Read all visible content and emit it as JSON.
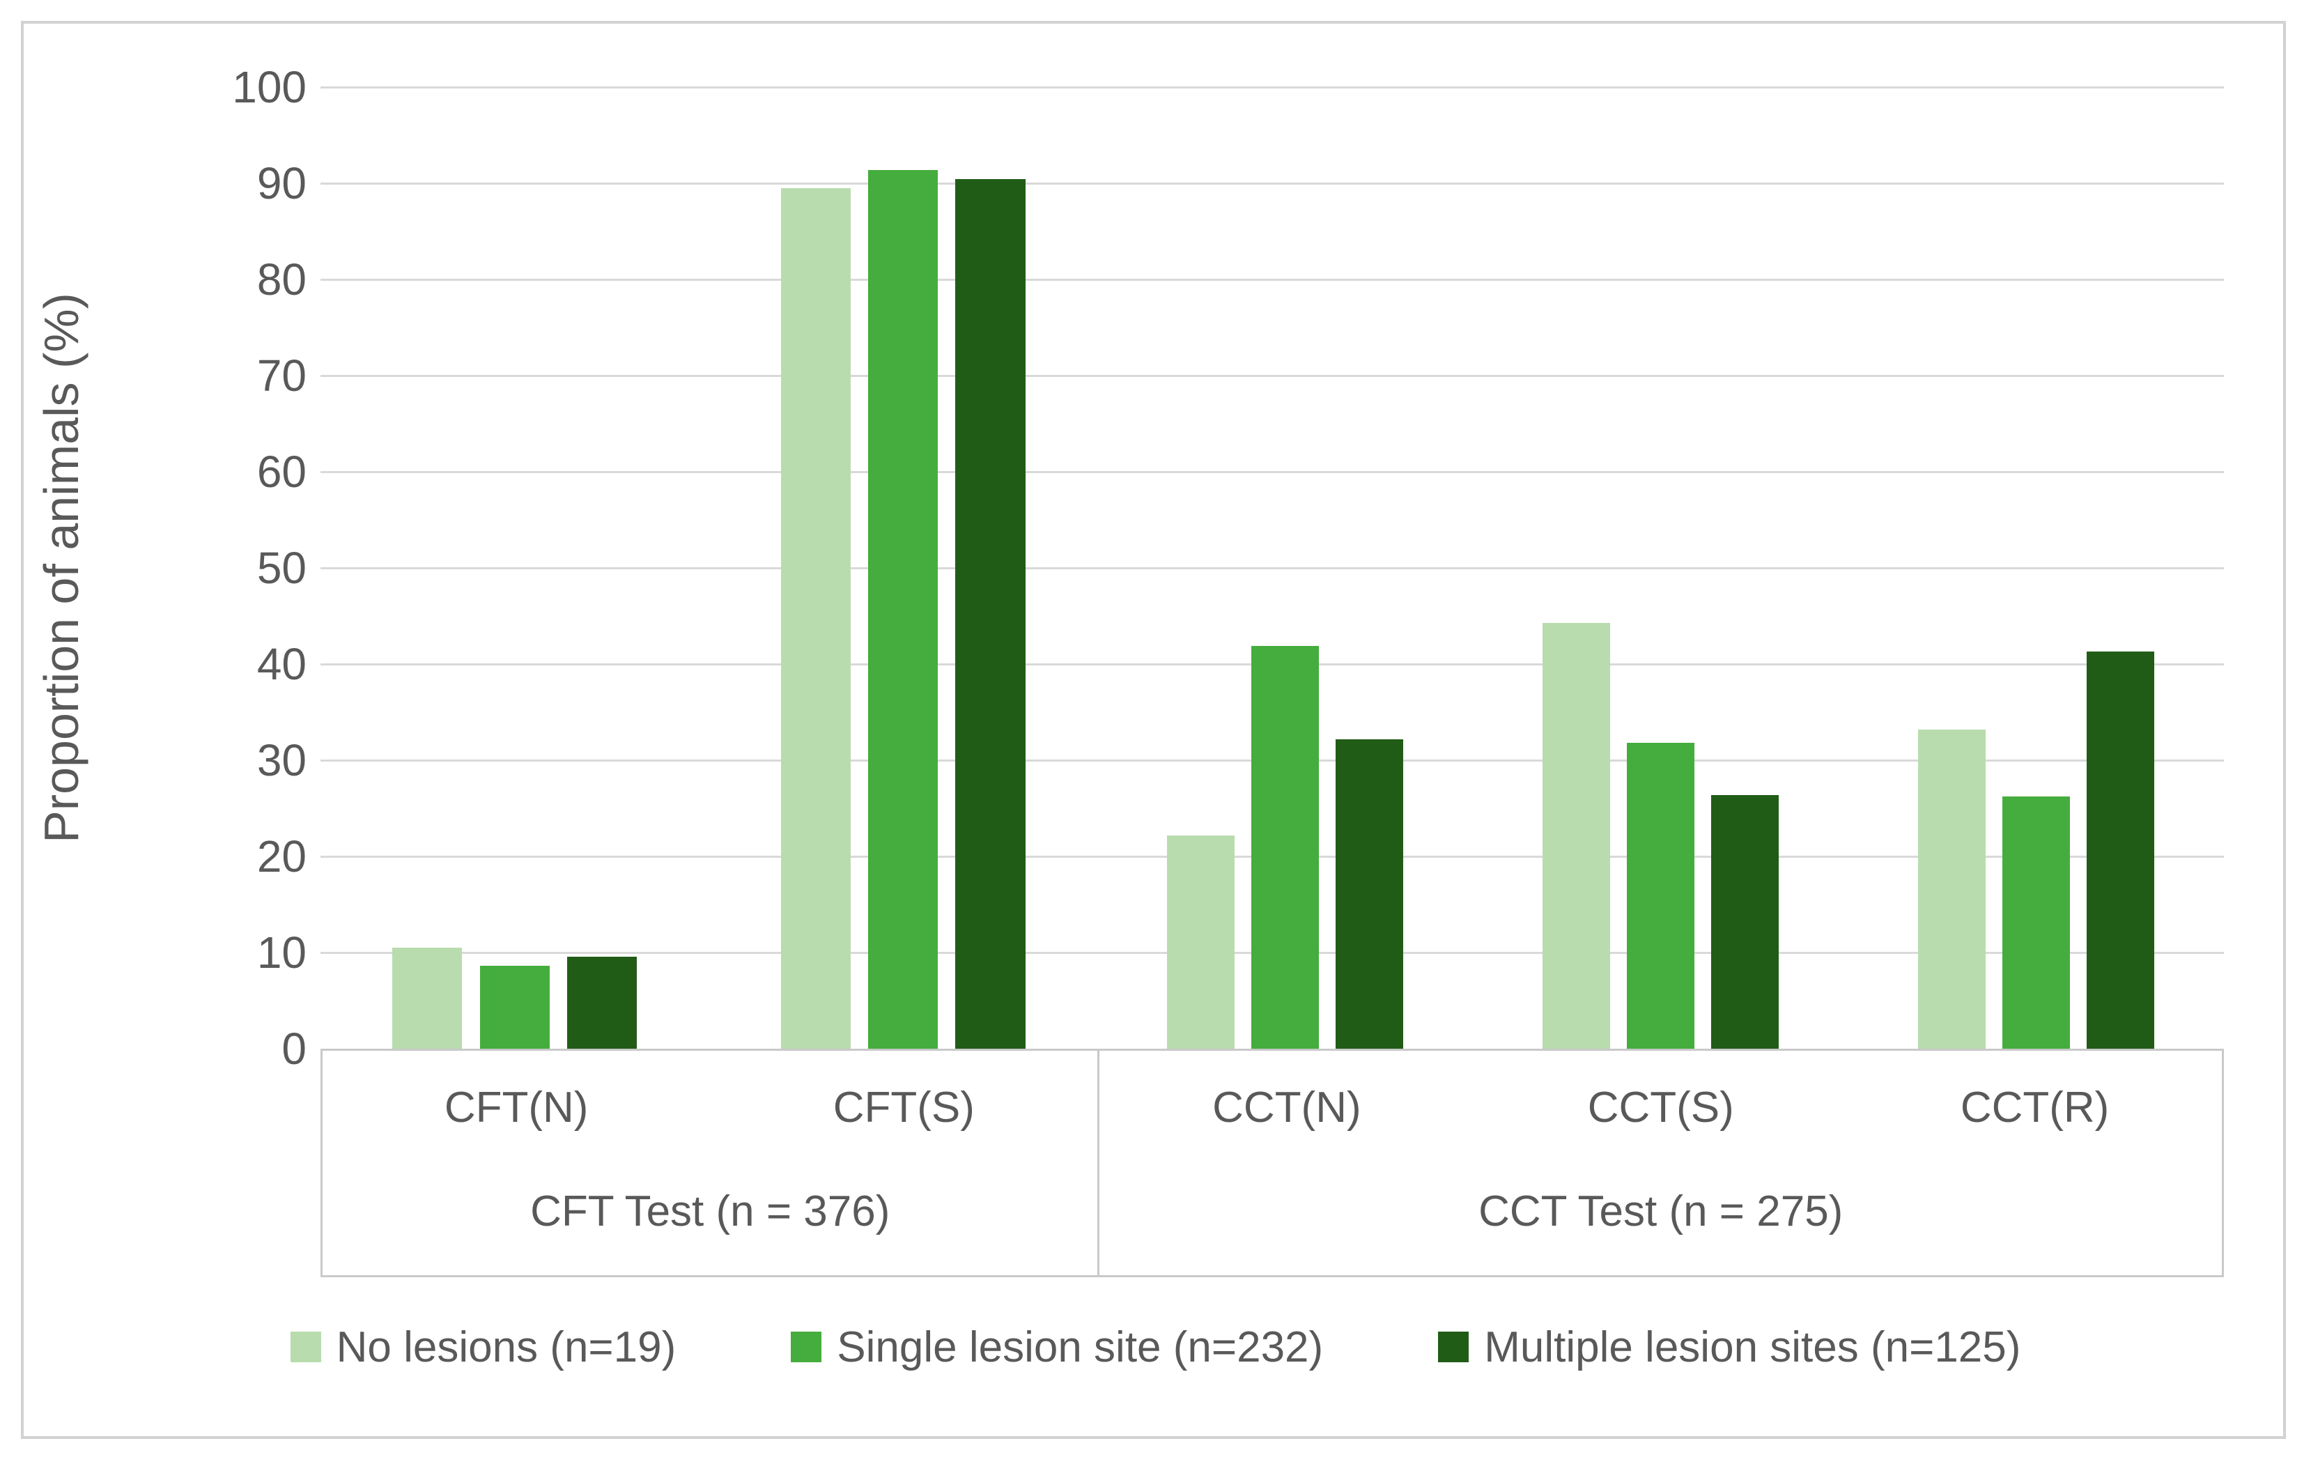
{
  "chart_data": {
    "type": "bar",
    "title": "",
    "ylabel": "Proportion of animals (%)",
    "xlabel": "",
    "ylim": [
      0,
      100
    ],
    "yticks": [
      0,
      10,
      20,
      30,
      40,
      50,
      60,
      70,
      80,
      90,
      100
    ],
    "grid": "horizontal",
    "legend_position": "bottom",
    "categories": [
      "CFT(N)",
      "CFT(S)",
      "CCT(N)",
      "CCT(S)",
      "CCT(R)"
    ],
    "category_groups": [
      {
        "label": "CFT Test (n = 376)",
        "categories": [
          "CFT(N)",
          "CFT(S)"
        ]
      },
      {
        "label": "CCT Test (n = 275)",
        "categories": [
          "CCT(N)",
          "CCT(S)",
          "CCT(R)"
        ]
      }
    ],
    "series": [
      {
        "name": "No lesions (n=19)",
        "color": "#b9dcae",
        "values": [
          10.5,
          89.5,
          22.2,
          44.3,
          33.2
        ]
      },
      {
        "name": "Single lesion site (n=232)",
        "color": "#45ad3d",
        "values": [
          8.6,
          91.4,
          41.9,
          31.8,
          26.2
        ]
      },
      {
        "name": "Multiple lesion sites (n=125)",
        "color": "#215c17",
        "values": [
          9.6,
          90.4,
          32.2,
          26.4,
          41.3
        ]
      }
    ]
  },
  "colors": {
    "text": "#595959",
    "gridline": "#d9d9d9",
    "axis_box": "#c9c9c9",
    "chart_border": "#d2d2d2",
    "background": "#ffffff"
  }
}
